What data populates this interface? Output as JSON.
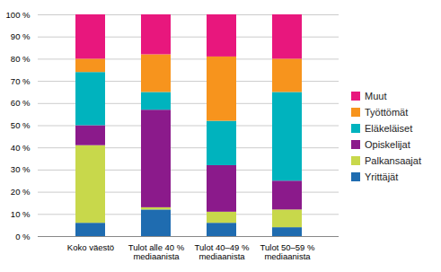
{
  "chart_data": {
    "type": "bar",
    "stacked": true,
    "categories": [
      "Koko väestö",
      "Tulot alle 40 %\nmediaanista",
      "Tulot 40–49 %\nmediaanista",
      "Tulot 50–59 %\nmediaanista"
    ],
    "series": [
      {
        "name": "Yrittäjät",
        "color": "#1F6CB0",
        "values": [
          6,
          12,
          6,
          4
        ]
      },
      {
        "name": "Palkansaajat",
        "color": "#C8D84B",
        "values": [
          35,
          1,
          5,
          8
        ]
      },
      {
        "name": "Opiskelijat",
        "color": "#8B1A8B",
        "values": [
          9,
          44,
          21,
          13
        ]
      },
      {
        "name": "Eläkeläiset",
        "color": "#00B3BE",
        "values": [
          24,
          8,
          20,
          40
        ]
      },
      {
        "name": "Työttömät",
        "color": "#F7941D",
        "values": [
          6,
          17,
          29,
          15
        ]
      },
      {
        "name": "Muut",
        "color": "#E8177D",
        "values": [
          20,
          18,
          19,
          20
        ]
      }
    ],
    "ylim": [
      0,
      100
    ],
    "yticks": [
      {
        "value": 0,
        "label": "0 %"
      },
      {
        "value": 10,
        "label": "10 %"
      },
      {
        "value": 20,
        "label": "20 %"
      },
      {
        "value": 30,
        "label": "30 %"
      },
      {
        "value": 40,
        "label": "40 %"
      },
      {
        "value": 50,
        "label": "50 %"
      },
      {
        "value": 60,
        "label": "60 %"
      },
      {
        "value": 70,
        "label": "70 %"
      },
      {
        "value": 80,
        "label": "80 %"
      },
      {
        "value": 90,
        "label": "90 %"
      },
      {
        "value": 100,
        "label": "100 %"
      }
    ],
    "grid": true,
    "legend": "right"
  }
}
